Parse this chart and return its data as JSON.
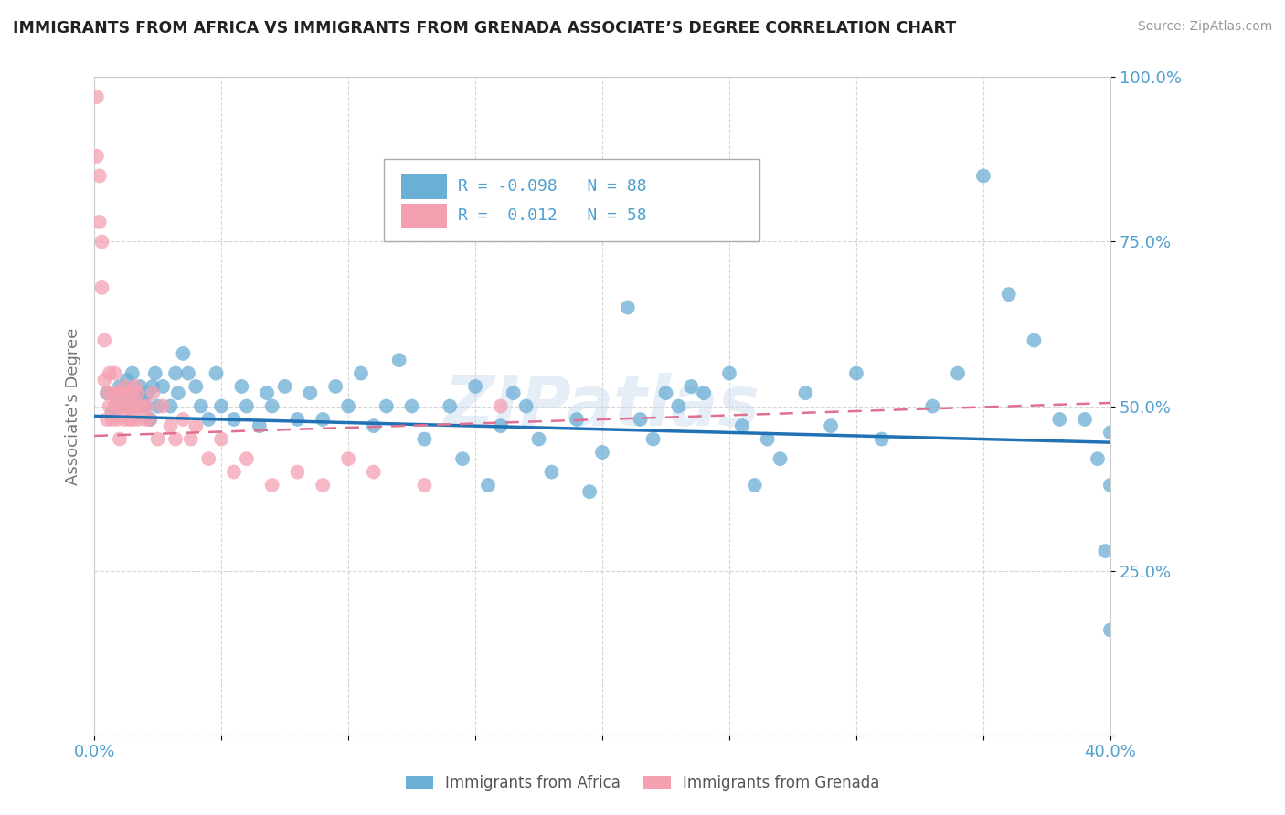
{
  "title": "IMMIGRANTS FROM AFRICA VS IMMIGRANTS FROM GRENADA ASSOCIATE’S DEGREE CORRELATION CHART",
  "source": "Source: ZipAtlas.com",
  "ylabel": "Associate's Degree",
  "x_min": 0.0,
  "x_max": 0.4,
  "y_min": 0.0,
  "y_max": 1.0,
  "legend_label1": "Immigrants from Africa",
  "legend_label2": "Immigrants from Grenada",
  "R1": -0.098,
  "N1": 88,
  "R2": 0.012,
  "N2": 58,
  "color_africa": "#6baed6",
  "color_grenada": "#f4a0b0",
  "color_line_africa": "#2171b5",
  "color_line_grenada": "#e07090",
  "watermark": "ZIPatlas",
  "tick_color": "#4fa0d0",
  "africa_x": [
    0.005,
    0.007,
    0.009,
    0.01,
    0.011,
    0.012,
    0.013,
    0.014,
    0.015,
    0.016,
    0.017,
    0.018,
    0.019,
    0.02,
    0.021,
    0.022,
    0.023,
    0.024,
    0.025,
    0.027,
    0.03,
    0.032,
    0.033,
    0.035,
    0.037,
    0.04,
    0.042,
    0.045,
    0.048,
    0.05,
    0.055,
    0.058,
    0.06,
    0.065,
    0.068,
    0.07,
    0.075,
    0.08,
    0.085,
    0.09,
    0.095,
    0.1,
    0.105,
    0.11,
    0.115,
    0.12,
    0.125,
    0.13,
    0.14,
    0.145,
    0.15,
    0.155,
    0.16,
    0.165,
    0.17,
    0.175,
    0.18,
    0.19,
    0.195,
    0.2,
    0.21,
    0.215,
    0.22,
    0.225,
    0.23,
    0.235,
    0.24,
    0.25,
    0.255,
    0.26,
    0.265,
    0.27,
    0.28,
    0.29,
    0.3,
    0.31,
    0.33,
    0.34,
    0.35,
    0.36,
    0.37,
    0.38,
    0.39,
    0.395,
    0.398,
    0.4,
    0.4,
    0.4
  ],
  "africa_y": [
    0.52,
    0.49,
    0.51,
    0.53,
    0.5,
    0.52,
    0.54,
    0.5,
    0.55,
    0.52,
    0.5,
    0.53,
    0.51,
    0.5,
    0.52,
    0.48,
    0.53,
    0.55,
    0.5,
    0.53,
    0.5,
    0.55,
    0.52,
    0.58,
    0.55,
    0.53,
    0.5,
    0.48,
    0.55,
    0.5,
    0.48,
    0.53,
    0.5,
    0.47,
    0.52,
    0.5,
    0.53,
    0.48,
    0.52,
    0.48,
    0.53,
    0.5,
    0.55,
    0.47,
    0.5,
    0.57,
    0.5,
    0.45,
    0.5,
    0.42,
    0.53,
    0.38,
    0.47,
    0.52,
    0.5,
    0.45,
    0.4,
    0.48,
    0.37,
    0.43,
    0.65,
    0.48,
    0.45,
    0.52,
    0.5,
    0.53,
    0.52,
    0.55,
    0.47,
    0.38,
    0.45,
    0.42,
    0.52,
    0.47,
    0.55,
    0.45,
    0.5,
    0.55,
    0.85,
    0.67,
    0.6,
    0.48,
    0.48,
    0.42,
    0.28,
    0.46,
    0.38,
    0.16
  ],
  "grenada_x": [
    0.001,
    0.001,
    0.002,
    0.002,
    0.003,
    0.003,
    0.004,
    0.004,
    0.005,
    0.005,
    0.006,
    0.006,
    0.007,
    0.007,
    0.008,
    0.008,
    0.009,
    0.009,
    0.01,
    0.01,
    0.011,
    0.011,
    0.012,
    0.012,
    0.013,
    0.013,
    0.014,
    0.014,
    0.015,
    0.015,
    0.016,
    0.016,
    0.017,
    0.017,
    0.018,
    0.019,
    0.02,
    0.021,
    0.022,
    0.023,
    0.025,
    0.027,
    0.03,
    0.032,
    0.035,
    0.038,
    0.04,
    0.045,
    0.05,
    0.055,
    0.06,
    0.07,
    0.08,
    0.09,
    0.1,
    0.11,
    0.13,
    0.16
  ],
  "grenada_y": [
    0.97,
    0.88,
    0.85,
    0.78,
    0.75,
    0.68,
    0.6,
    0.54,
    0.52,
    0.48,
    0.5,
    0.55,
    0.52,
    0.48,
    0.5,
    0.55,
    0.52,
    0.48,
    0.5,
    0.45,
    0.5,
    0.52,
    0.48,
    0.53,
    0.5,
    0.52,
    0.48,
    0.5,
    0.52,
    0.48,
    0.5,
    0.53,
    0.48,
    0.52,
    0.5,
    0.5,
    0.48,
    0.5,
    0.48,
    0.52,
    0.45,
    0.5,
    0.47,
    0.45,
    0.48,
    0.45,
    0.47,
    0.42,
    0.45,
    0.4,
    0.42,
    0.38,
    0.4,
    0.38,
    0.42,
    0.4,
    0.38,
    0.5
  ],
  "africa_line_x0": 0.0,
  "africa_line_x1": 0.4,
  "africa_line_y0": 0.485,
  "africa_line_y1": 0.445,
  "grenada_line_x0": 0.0,
  "grenada_line_x1": 0.4,
  "grenada_line_y0": 0.455,
  "grenada_line_y1": 0.505
}
